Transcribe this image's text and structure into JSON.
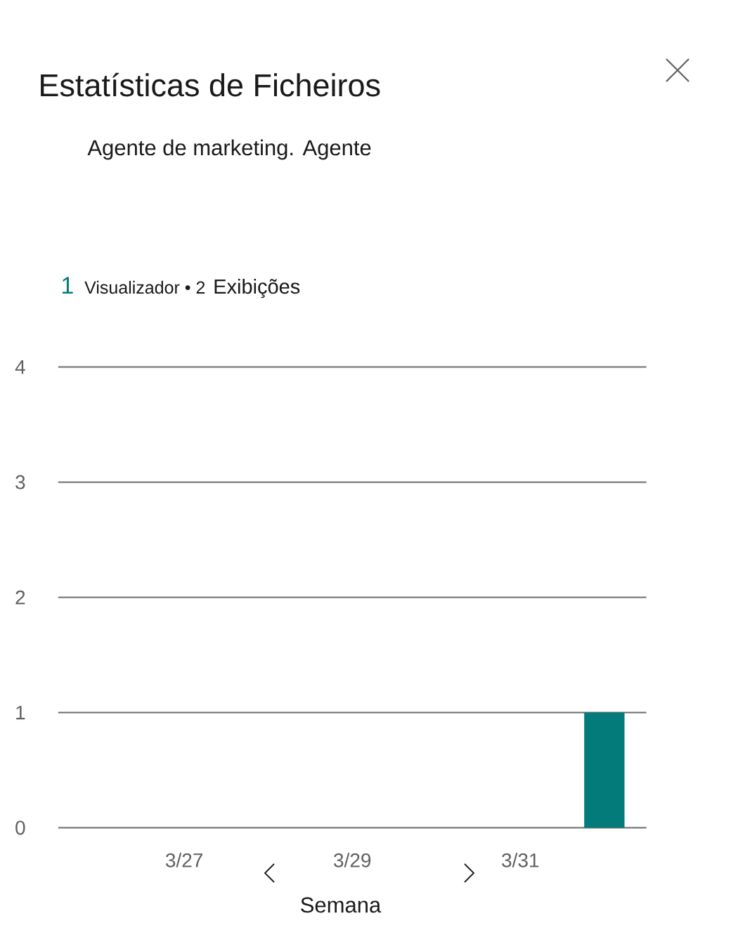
{
  "chart_data": {
    "type": "bar",
    "title": "Estatísticas de Ficheiros",
    "subtitle": "Agente de marketing. Agente",
    "xlabel": "Semana",
    "categories": [
      null,
      "3/27",
      null,
      "3/29",
      null,
      "3/31",
      null
    ],
    "values": [
      0,
      0,
      0,
      0,
      0,
      0,
      1
    ],
    "color": "#037b7b",
    "ylim": [
      0,
      4
    ],
    "yticks": [
      0,
      1,
      2,
      3,
      4
    ],
    "grid": "y",
    "annotations": [
      "1",
      "Visualizador • 2",
      "Exibições"
    ]
  }
}
